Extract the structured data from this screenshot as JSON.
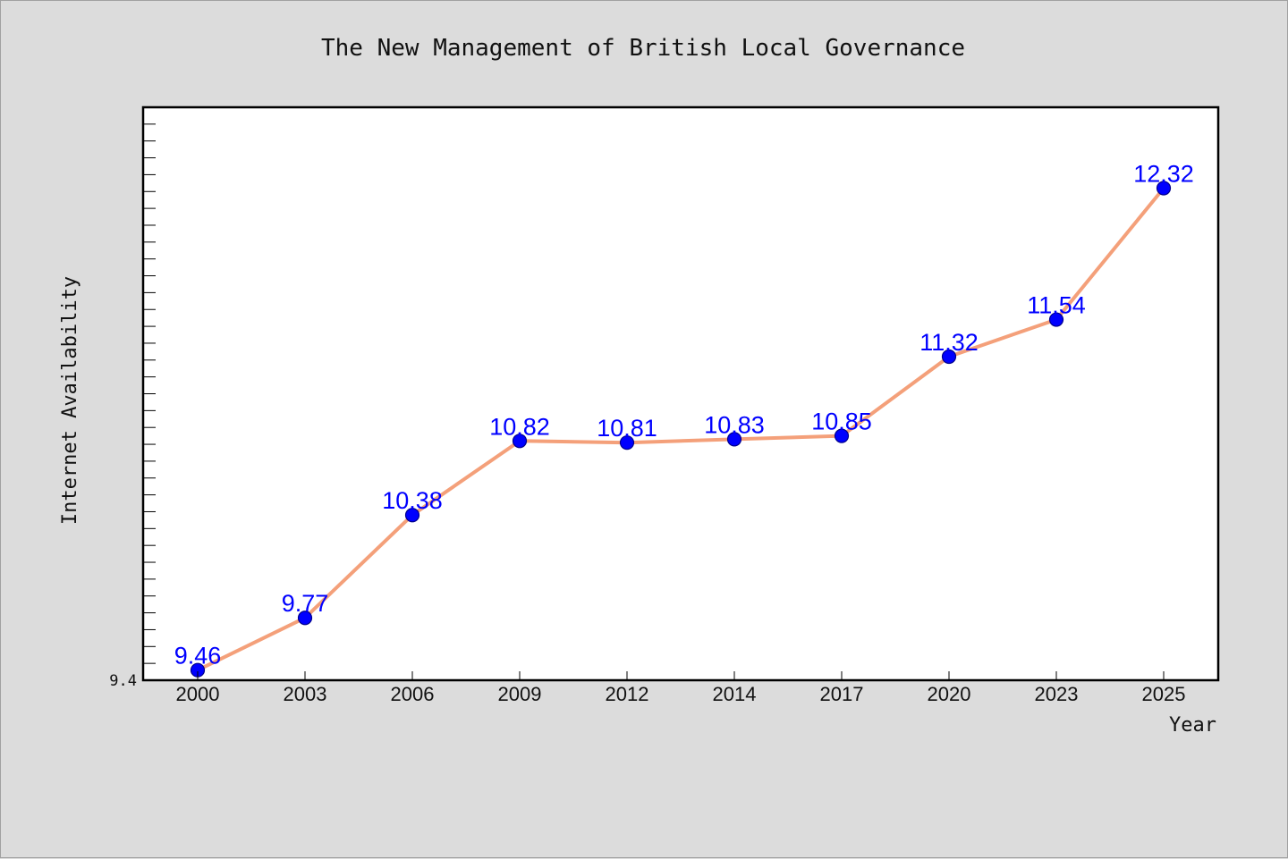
{
  "chart_data": {
    "type": "line",
    "title": "The New Management of British Local Governance",
    "xlabel": "Year",
    "ylabel": "Internet Availability",
    "categories": [
      "2000",
      "2003",
      "2006",
      "2009",
      "2012",
      "2014",
      "2017",
      "2020",
      "2023",
      "2025"
    ],
    "values": [
      9.46,
      9.77,
      10.38,
      10.82,
      10.81,
      10.83,
      10.85,
      11.32,
      11.54,
      12.32
    ],
    "ylim": [
      9.4,
      12.8
    ],
    "yticks_labeled": [
      "9.4"
    ],
    "grid": false,
    "legend": "none",
    "colors": {
      "line": "#f4a07a",
      "marker": "#0000ff",
      "marker_edge": "#00008b",
      "data_label": "#0000ff",
      "plot_bg": "#ffffff",
      "figure_bg": "#dcdcdc"
    }
  }
}
